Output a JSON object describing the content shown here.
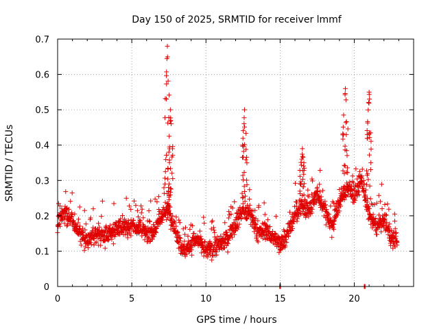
{
  "chart_data": {
    "type": "scatter",
    "title": "Day 150 of 2025, SRMTID for receiver lmmf",
    "xlabel": "GPS time / hours",
    "ylabel": "SRMTID / TECUs",
    "xlim": [
      0,
      24
    ],
    "ylim": [
      0,
      0.7
    ],
    "xticks": [
      0,
      5,
      10,
      15,
      20
    ],
    "yticks": [
      0,
      0.1,
      0.2,
      0.3,
      0.4,
      0.5,
      0.6,
      0.7
    ],
    "xtick_labels": [
      "0",
      "5",
      "10",
      "15",
      "20"
    ],
    "ytick_labels": [
      "0",
      "0.1",
      "0.2",
      "0.3",
      "0.4",
      "0.5",
      "0.6",
      "0.7"
    ],
    "grid": true,
    "marker": "+",
    "color": "#e00000",
    "data_coverage": [
      0,
      22.9
    ],
    "trend": [
      [
        0.0,
        0.19
      ],
      [
        0.5,
        0.2
      ],
      [
        1.0,
        0.19
      ],
      [
        1.5,
        0.15
      ],
      [
        2.0,
        0.13
      ],
      [
        2.5,
        0.15
      ],
      [
        3.0,
        0.14
      ],
      [
        3.5,
        0.15
      ],
      [
        4.0,
        0.16
      ],
      [
        4.5,
        0.17
      ],
      [
        5.0,
        0.17
      ],
      [
        5.5,
        0.17
      ],
      [
        6.0,
        0.15
      ],
      [
        6.5,
        0.16
      ],
      [
        7.0,
        0.2
      ],
      [
        7.5,
        0.22
      ],
      [
        8.0,
        0.15
      ],
      [
        8.5,
        0.1
      ],
      [
        9.0,
        0.12
      ],
      [
        9.5,
        0.13
      ],
      [
        10.0,
        0.1
      ],
      [
        10.5,
        0.11
      ],
      [
        11.0,
        0.12
      ],
      [
        11.5,
        0.14
      ],
      [
        12.0,
        0.18
      ],
      [
        12.5,
        0.22
      ],
      [
        13.0,
        0.2
      ],
      [
        13.5,
        0.15
      ],
      [
        14.0,
        0.16
      ],
      [
        14.5,
        0.14
      ],
      [
        15.0,
        0.12
      ],
      [
        15.5,
        0.15
      ],
      [
        16.0,
        0.2
      ],
      [
        16.5,
        0.23
      ],
      [
        17.0,
        0.22
      ],
      [
        17.5,
        0.26
      ],
      [
        18.0,
        0.22
      ],
      [
        18.5,
        0.17
      ],
      [
        19.0,
        0.24
      ],
      [
        19.5,
        0.28
      ],
      [
        20.0,
        0.26
      ],
      [
        20.5,
        0.3
      ],
      [
        21.0,
        0.2
      ],
      [
        21.5,
        0.17
      ],
      [
        22.0,
        0.19
      ],
      [
        22.5,
        0.14
      ],
      [
        22.9,
        0.13
      ]
    ],
    "spikes": [
      {
        "x": 7.4,
        "peak": 0.68
      },
      {
        "x": 7.6,
        "peak": 0.5
      },
      {
        "x": 12.6,
        "peak": 0.5
      },
      {
        "x": 16.5,
        "peak": 0.39
      },
      {
        "x": 19.4,
        "peak": 0.56
      },
      {
        "x": 21.0,
        "peak": 0.55
      }
    ],
    "zero_values_at_x": [
      15.0,
      20.7
    ]
  }
}
